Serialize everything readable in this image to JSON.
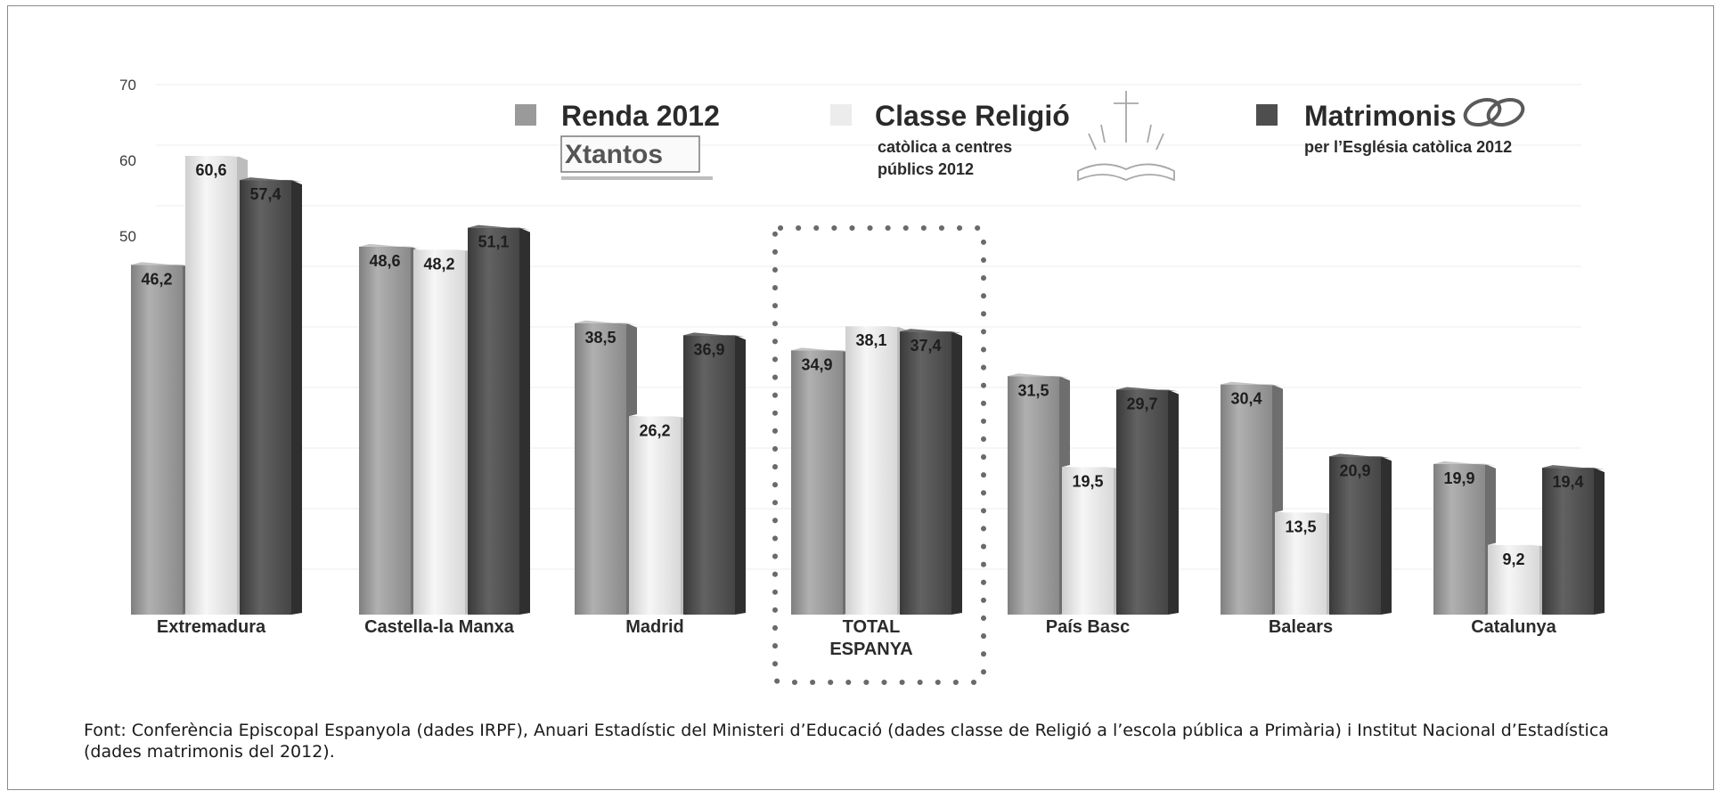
{
  "chart_data": {
    "type": "bar",
    "title": "",
    "xlabel": "",
    "ylabel": "",
    "ylim": [
      0,
      70
    ],
    "yticks": [
      "70",
      "60",
      "50"
    ],
    "grid": true,
    "legend_position": "top",
    "categories": [
      "Extremadura",
      "Castella-la Manxa",
      "Madrid",
      "TOTAL ESPANYA",
      "País Basc",
      "Balears",
      "Catalunya"
    ],
    "highlighted_category": "TOTAL ESPANYA",
    "series": [
      {
        "name": "Renda 2012",
        "color": "#9a9a9a",
        "values": [
          46.2,
          48.6,
          38.5,
          34.9,
          31.5,
          30.4,
          19.9
        ],
        "labels": [
          "46,2",
          "48,6",
          "38,5",
          "34,9",
          "31,5",
          "30,4",
          "19,9"
        ]
      },
      {
        "name": "Classe Religió",
        "subtitle_lines": [
          "catòlica a centres",
          "públics 2012"
        ],
        "color": "#e4e4e4",
        "values": [
          60.6,
          48.2,
          26.2,
          38.1,
          19.5,
          13.5,
          9.2
        ],
        "labels": [
          "60,6",
          "48,2",
          "26,2",
          "38,1",
          "19,5",
          "13,5",
          "9,2"
        ]
      },
      {
        "name": "Matrimonis",
        "subtitle_lines": [
          "per l’Església catòlica 2012"
        ],
        "color": "#4e4e4e",
        "values": [
          57.4,
          51.1,
          36.9,
          37.4,
          29.7,
          20.9,
          19.4
        ],
        "labels": [
          "57,4",
          "51,1",
          "36,9",
          "37,4",
          "29,7",
          "20,9",
          "19,4"
        ]
      }
    ]
  },
  "logos": {
    "renda": "Xtantos",
    "religio": "cross-book-icon",
    "matrimonis": "rings-icon"
  },
  "caption": "Font: Conferència Episcopal Espanyola (dades IRPF), Anuari Estadístic del Ministeri d’Educació (dades classe de Religió a l’escola pública a Primària) i Institut Nacional d’Estadística (dades matrimonis del 2012)."
}
